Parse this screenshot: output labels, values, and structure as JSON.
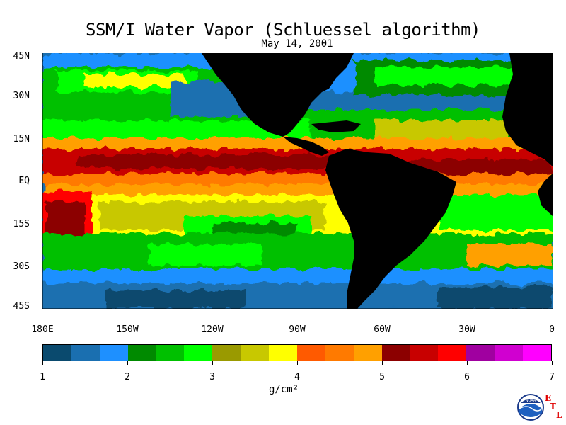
{
  "title": "SSM/I Water Vapor (Schluessel algorithm)",
  "subtitle": "May 14, 2001",
  "lat_labels": [
    "45N",
    "30N",
    "15N",
    "EQ",
    "15S",
    "30S",
    "45S"
  ],
  "lon_labels": [
    "180E",
    "150W",
    "120W",
    "90W",
    "60W",
    "30W",
    "0"
  ],
  "colorbar": {
    "ticks": [
      "1",
      "2",
      "3",
      "4",
      "5",
      "6",
      "7"
    ],
    "units": "g/cm²",
    "colors": [
      "#0a4a6e",
      "#1a6fb0",
      "#1e90ff",
      "#008a00",
      "#00c000",
      "#00ff00",
      "#9a9a00",
      "#c8c800",
      "#ffff00",
      "#ff5a00",
      "#ff7a00",
      "#ffa000",
      "#8c0000",
      "#c80000",
      "#ff0000",
      "#a000a0",
      "#d000d0",
      "#ff00ff"
    ]
  },
  "logo": {
    "name": "noaa-icon",
    "text": "NOAA"
  },
  "etl": {
    "e": "E",
    "t": "T",
    "l": "L"
  }
}
